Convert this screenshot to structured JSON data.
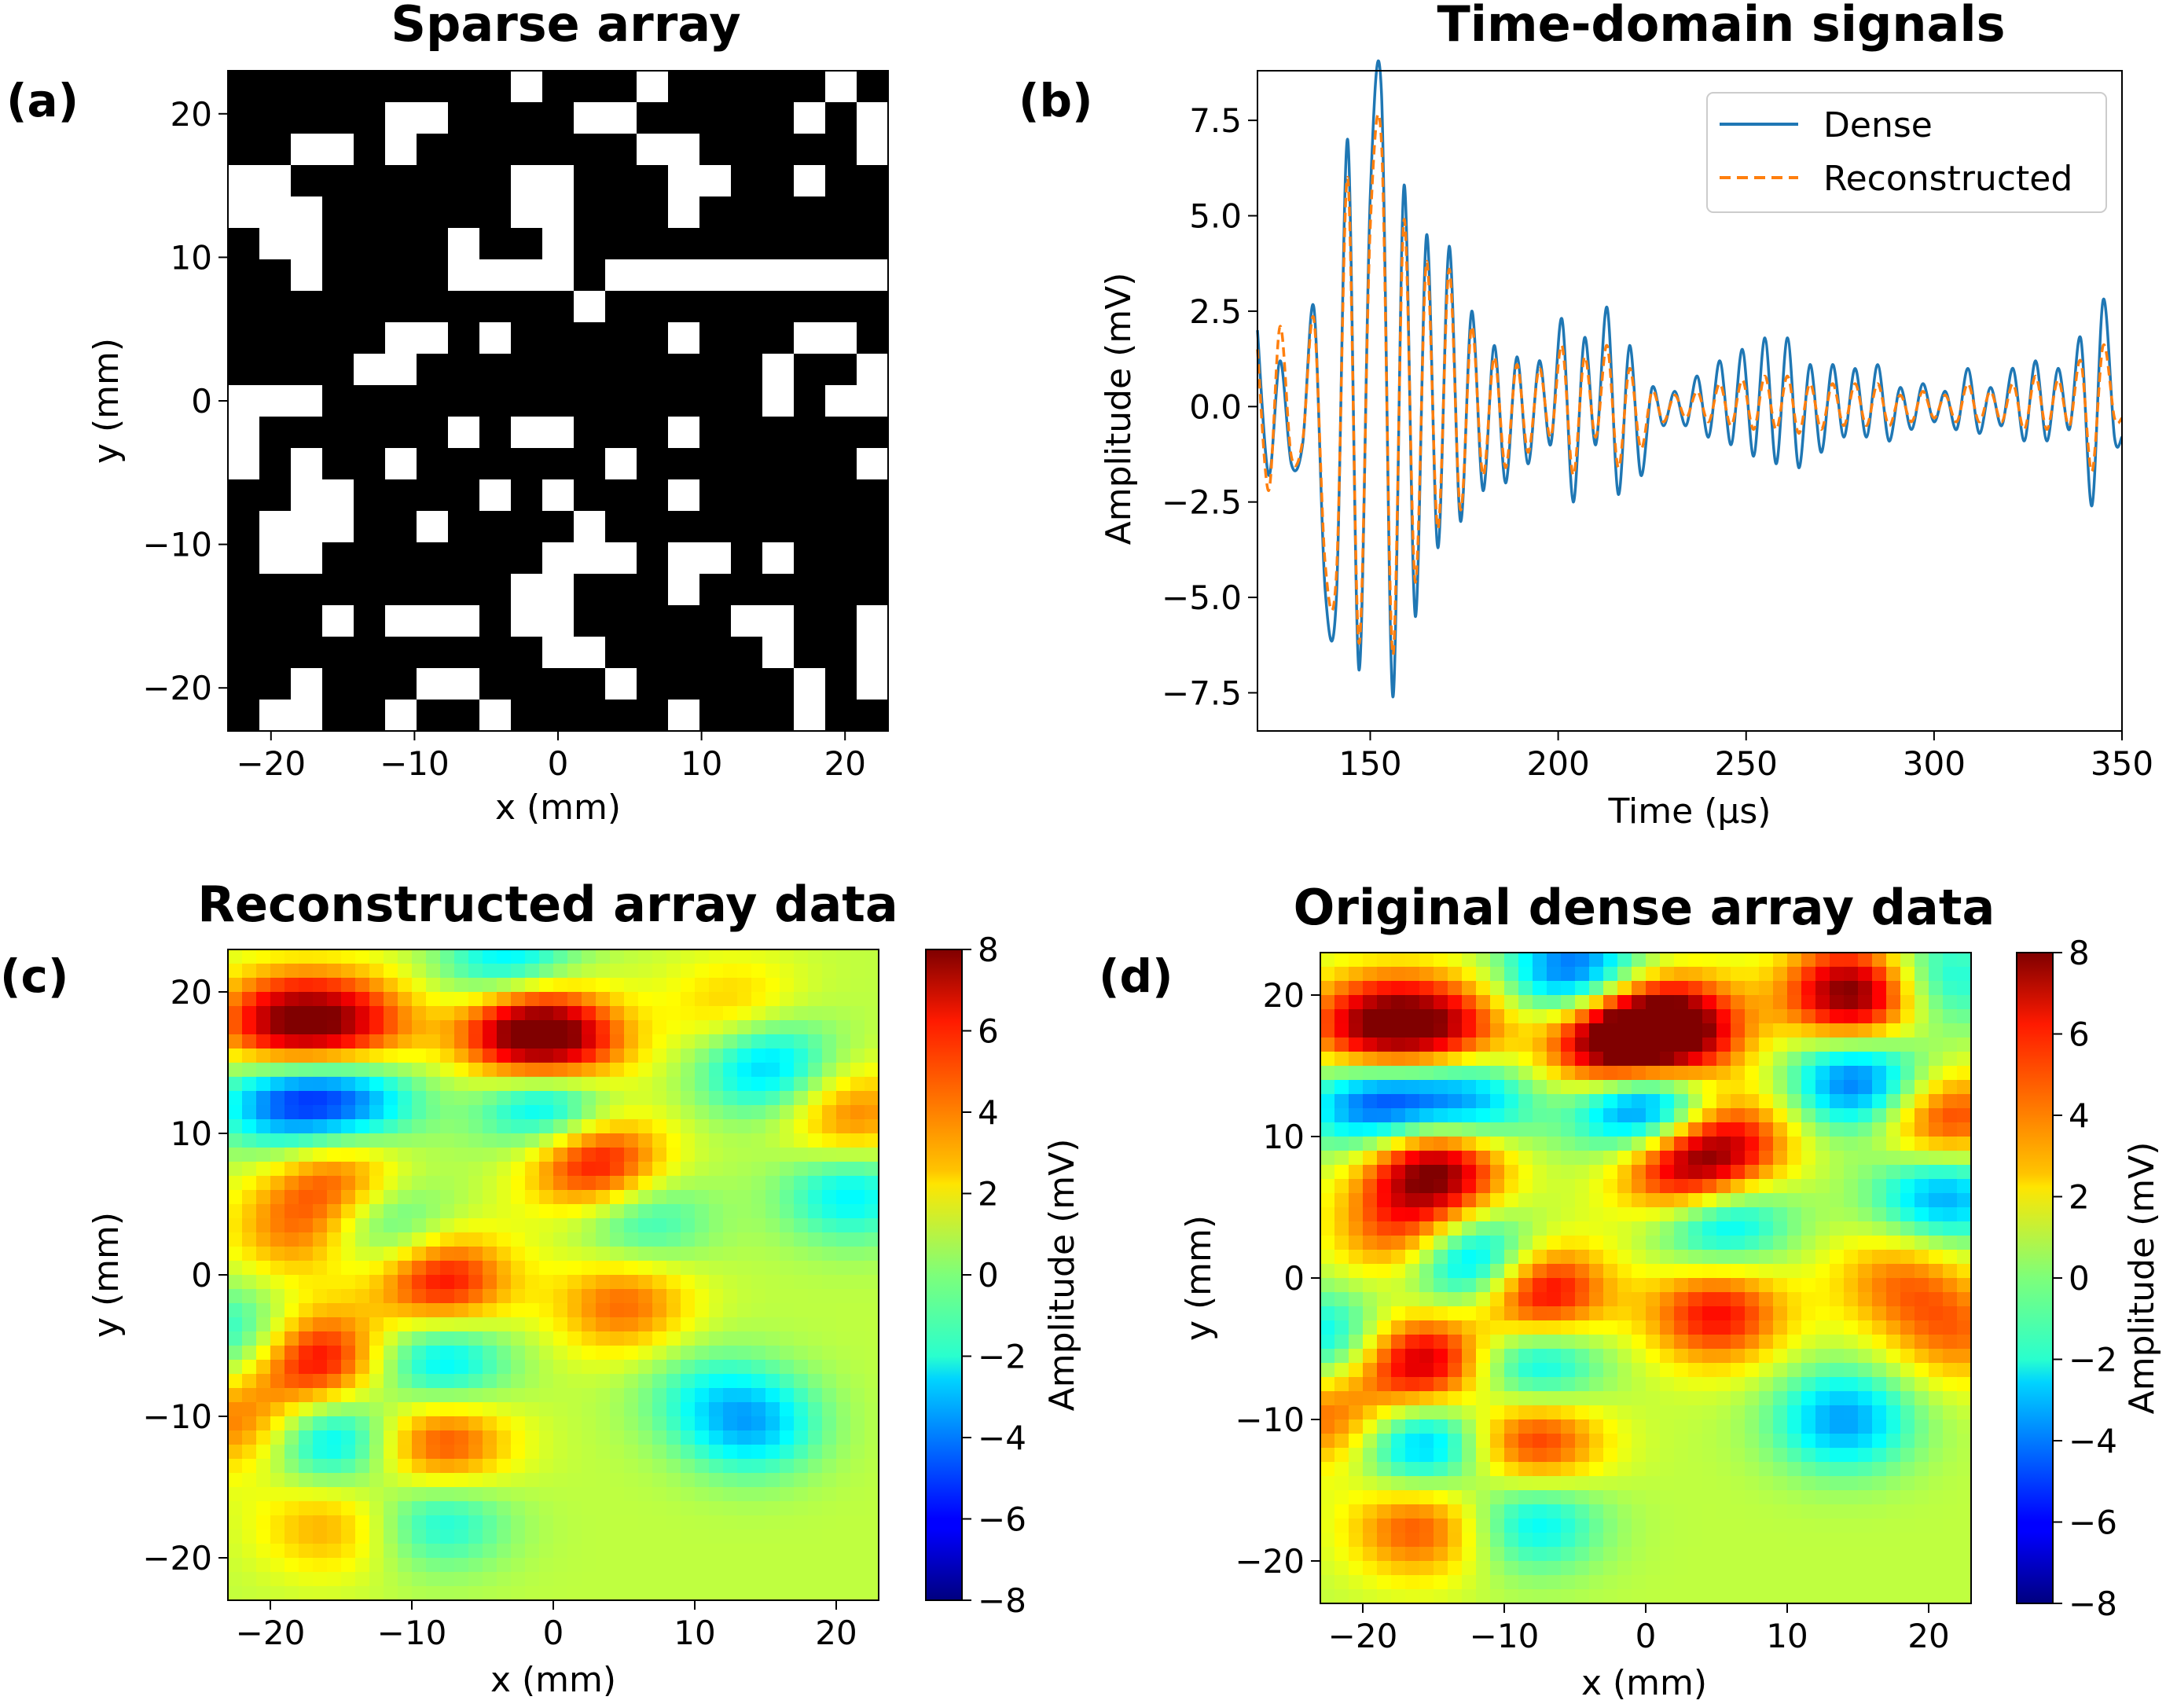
{
  "panels": {
    "a": {
      "label": "(a)",
      "title": "Sparse array",
      "xlabel": "x (mm)",
      "ylabel": "y (mm)",
      "xticks": [
        "−20",
        "−10",
        "0",
        "10",
        "20"
      ],
      "yticks": [
        "20",
        "10",
        "0",
        "−10",
        "−20"
      ]
    },
    "b": {
      "label": "(b)",
      "title": "Time-domain signals",
      "xlabel": "Time (μs)",
      "ylabel": "Amplitude (mV)",
      "xticks": [
        "150",
        "200",
        "250",
        "300",
        "350"
      ],
      "yticks": [
        "7.5",
        "5.0",
        "2.5",
        "0.0",
        "−2.5",
        "−5.0",
        "−7.5"
      ],
      "legend": [
        "Dense",
        "Reconstructed"
      ]
    },
    "c": {
      "label": "(c)",
      "title": "Reconstructed array data",
      "xlabel": "x (mm)",
      "ylabel": "y (mm)",
      "xticks": [
        "−20",
        "−10",
        "0",
        "10",
        "20"
      ],
      "yticks": [
        "20",
        "10",
        "0",
        "−10",
        "−20"
      ],
      "cbar_label": "Amplitude (mV)",
      "cbar_ticks": [
        "8",
        "6",
        "4",
        "2",
        "0",
        "−2",
        "−4",
        "−6",
        "−8"
      ]
    },
    "d": {
      "label": "(d)",
      "title": "Original dense array data",
      "xlabel": "x (mm)",
      "ylabel": "y (mm)",
      "xticks": [
        "−20",
        "−10",
        "0",
        "10",
        "20"
      ],
      "yticks": [
        "20",
        "10",
        "0",
        "−10",
        "−20"
      ],
      "cbar_label": "Amplitude (mV)",
      "cbar_ticks": [
        "8",
        "6",
        "4",
        "2",
        "0",
        "−2",
        "−4",
        "−6",
        "−8"
      ]
    }
  },
  "chart_data": [
    {
      "type": "heatmap",
      "title": "Sparse array",
      "xlabel": "x (mm)",
      "ylabel": "y (mm)",
      "xlim": [
        -23,
        23
      ],
      "ylim": [
        -23,
        23
      ],
      "colormap": "binary (white = active element, black = empty)",
      "grid_size": [
        21,
        21
      ],
      "rows_top_to_bottom": [
        "000000000100010000010",
        "000001100001100000101",
        "001101000000011000001",
        "110000000110001100100",
        "111000000110001000000",
        "011000010010000000000",
        "001000011110111111111",
        "000000000001000000000",
        "000001101000001000110",
        "000011000000000001001",
        "111000000000000001011",
        "100000010110001000000",
        "101001000000100000001",
        "001100001010001000000",
        "011100100001000000000",
        "011000000011101101000",
        "000000000110001000000",
        "000101110110000011001",
        "000000000011000001001",
        "001000110000100000101",
        "011001001000001000100"
      ]
    },
    {
      "type": "line",
      "title": "Time-domain signals",
      "xlabel": "Time (μs)",
      "ylabel": "Amplitude (mV)",
      "xlim": [
        120,
        350
      ],
      "ylim": [
        -8.5,
        8.8
      ],
      "legend_position": "top-right",
      "series": [
        {
          "name": "Dense",
          "color": "#1f77b4",
          "style": "solid",
          "x": [
            120,
            123,
            126,
            129,
            132,
            135,
            138,
            141,
            144,
            147,
            150,
            153,
            156,
            159,
            162,
            165,
            168,
            171,
            174,
            177,
            180,
            183,
            186,
            189,
            192,
            195,
            198,
            201,
            204,
            207,
            210,
            213,
            216,
            219,
            222,
            225,
            228,
            231,
            234,
            237,
            240,
            243,
            246,
            249,
            252,
            255,
            258,
            261,
            264,
            267,
            270,
            273,
            276,
            279,
            282,
            285,
            288,
            291,
            294,
            297,
            300,
            303,
            306,
            309,
            312,
            315,
            318,
            321,
            324,
            327,
            330,
            333,
            336,
            339,
            342,
            345,
            348,
            350
          ],
          "y": [
            2.0,
            -1.8,
            1.2,
            -1.5,
            -1.0,
            2.6,
            -4.8,
            -5.0,
            7.0,
            -6.9,
            5.5,
            8.2,
            -7.6,
            5.8,
            -5.5,
            4.5,
            -3.7,
            4.2,
            -3.0,
            2.5,
            -2.2,
            1.6,
            -2.0,
            1.3,
            -1.5,
            1.2,
            -1.0,
            2.3,
            -2.5,
            1.8,
            -1.0,
            2.6,
            -2.3,
            1.6,
            -1.8,
            0.5,
            -0.5,
            0.4,
            -0.5,
            0.8,
            -0.8,
            1.2,
            -1.0,
            1.5,
            -1.3,
            1.8,
            -1.5,
            1.8,
            -1.6,
            1.1,
            -1.2,
            1.1,
            -0.8,
            1.0,
            -0.8,
            1.1,
            -0.9,
            0.5,
            -0.6,
            0.6,
            -0.4,
            0.4,
            -0.6,
            1.0,
            -0.7,
            0.5,
            -0.5,
            1.0,
            -0.9,
            1.2,
            -0.9,
            1.0,
            -0.6,
            1.8,
            -2.6,
            2.8,
            -0.8,
            -0.8
          ]
        },
        {
          "name": "Reconstructed",
          "color": "#ff7f0e",
          "style": "dashed",
          "x": [
            120,
            123,
            126,
            129,
            132,
            135,
            138,
            141,
            144,
            147,
            150,
            153,
            156,
            159,
            162,
            165,
            168,
            171,
            174,
            177,
            180,
            183,
            186,
            189,
            192,
            195,
            198,
            201,
            204,
            207,
            210,
            213,
            216,
            219,
            222,
            225,
            228,
            231,
            234,
            237,
            240,
            243,
            246,
            249,
            252,
            255,
            258,
            261,
            264,
            267,
            270,
            273,
            276,
            279,
            282,
            285,
            288,
            291,
            294,
            297,
            300,
            303,
            306,
            309,
            312,
            315,
            318,
            321,
            324,
            327,
            330,
            333,
            336,
            339,
            342,
            345,
            348,
            350
          ],
          "y": [
            1.5,
            -2.2,
            2.1,
            -1.3,
            -0.9,
            2.3,
            -4.1,
            -4.4,
            6.0,
            -6.2,
            4.7,
            6.9,
            -6.5,
            4.9,
            -4.6,
            3.8,
            -3.2,
            3.6,
            -2.7,
            2.1,
            -1.8,
            1.3,
            -1.6,
            1.1,
            -1.2,
            1.0,
            -0.8,
            1.6,
            -1.8,
            1.3,
            -0.8,
            1.6,
            -1.6,
            1.0,
            -1.1,
            0.4,
            -0.4,
            0.3,
            -0.3,
            0.4,
            -0.4,
            0.6,
            -0.5,
            0.7,
            -0.6,
            0.8,
            -0.6,
            0.8,
            -0.7,
            0.6,
            -0.6,
            0.6,
            -0.5,
            0.6,
            -0.5,
            0.6,
            -0.5,
            0.3,
            -0.4,
            0.4,
            -0.3,
            0.3,
            -0.4,
            0.6,
            -0.4,
            0.4,
            -0.4,
            0.6,
            -0.6,
            0.8,
            -0.6,
            0.7,
            -0.5,
            1.2,
            -1.7,
            1.6,
            -0.3,
            -0.3
          ]
        }
      ]
    },
    {
      "type": "heatmap",
      "title": "Reconstructed array data",
      "xlabel": "x (mm)",
      "ylabel": "y (mm)",
      "xlim": [
        -23,
        23
      ],
      "ylim": [
        -23,
        23
      ],
      "colormap": "jet",
      "clim": [
        -8,
        8
      ],
      "colorbar_label": "Amplitude (mV)",
      "blobs": [
        {
          "x": -19,
          "y": 17.5,
          "amp": 6.5
        },
        {
          "x": -14,
          "y": 17.5,
          "amp": 4.5
        },
        {
          "x": -19,
          "y": 12.5,
          "amp": -5.5
        },
        {
          "x": -14,
          "y": 12.5,
          "amp": -4.5
        },
        {
          "x": -2,
          "y": 17.5,
          "amp": 7.5
        },
        {
          "x": 1,
          "y": 15.5,
          "amp": 5.0
        },
        {
          "x": 0,
          "y": 12.5,
          "amp": -6.5
        },
        {
          "x": 3,
          "y": 8,
          "amp": 6.0
        },
        {
          "x": -3,
          "y": 21.5,
          "amp": -4.5
        },
        {
          "x": -15,
          "y": 7,
          "amp": 4.0
        },
        {
          "x": -12,
          "y": 3.5,
          "amp": -3.5
        },
        {
          "x": -18,
          "y": 3,
          "amp": 3.0
        },
        {
          "x": -8,
          "y": -0.5,
          "amp": 5.5
        },
        {
          "x": -17,
          "y": -6,
          "amp": 6.0
        },
        {
          "x": -8,
          "y": -6,
          "amp": -4.0
        },
        {
          "x": -16,
          "y": -11.5,
          "amp": -4.5
        },
        {
          "x": -8,
          "y": -12,
          "amp": 4.5
        },
        {
          "x": -22,
          "y": -10.5,
          "amp": 3.5
        },
        {
          "x": -22,
          "y": -4.5,
          "amp": -3.5
        },
        {
          "x": -16,
          "y": -17.5,
          "amp": 2.5
        },
        {
          "x": -8,
          "y": -17,
          "amp": -3.0
        },
        {
          "x": 5,
          "y": -2,
          "amp": 3.5
        },
        {
          "x": 6,
          "y": 4,
          "amp": -3.0
        },
        {
          "x": 15,
          "y": 15,
          "amp": -4.5
        },
        {
          "x": 13,
          "y": 18.5,
          "amp": 2.5
        },
        {
          "x": 21,
          "y": 11,
          "amp": 3.5
        },
        {
          "x": 21,
          "y": 6,
          "amp": -3.5
        },
        {
          "x": 14,
          "y": -10.5,
          "amp": -4.0
        },
        {
          "x": 10,
          "y": -8,
          "amp": -1.5
        }
      ]
    },
    {
      "type": "heatmap",
      "title": "Original dense array data",
      "xlabel": "x (mm)",
      "ylabel": "y (mm)",
      "xlim": [
        -23,
        23
      ],
      "ylim": [
        -23,
        23
      ],
      "colormap": "jet",
      "clim": [
        -8,
        8
      ],
      "colorbar_label": "Amplitude (mV)",
      "blobs": [
        {
          "x": -19,
          "y": 17.5,
          "amp": 7.0
        },
        {
          "x": -14,
          "y": 17.5,
          "amp": 5.0
        },
        {
          "x": -19,
          "y": 12.5,
          "amp": -6.5
        },
        {
          "x": -13,
          "y": 12.5,
          "amp": -5.5
        },
        {
          "x": -2,
          "y": 16.5,
          "amp": 9.0
        },
        {
          "x": 2,
          "y": 17.5,
          "amp": 7.5
        },
        {
          "x": 0,
          "y": 12.5,
          "amp": -8.5
        },
        {
          "x": 3,
          "y": 7.5,
          "amp": 7.5
        },
        {
          "x": 6,
          "y": 10,
          "amp": 4.0
        },
        {
          "x": -5,
          "y": 21.5,
          "amp": -6.0
        },
        {
          "x": 15,
          "y": 20,
          "amp": 8.5
        },
        {
          "x": 15,
          "y": 14,
          "amp": -6.0
        },
        {
          "x": 20,
          "y": 21,
          "amp": -4.0
        },
        {
          "x": -15,
          "y": 8,
          "amp": 8.0
        },
        {
          "x": -17,
          "y": 3,
          "amp": 4.0
        },
        {
          "x": -12,
          "y": 1,
          "amp": -7.0
        },
        {
          "x": -8,
          "y": -1,
          "amp": 7.5
        },
        {
          "x": 5,
          "y": -2.5,
          "amp": 5.0
        },
        {
          "x": 5,
          "y": 4.5,
          "amp": -5.5
        },
        {
          "x": -16,
          "y": -6,
          "amp": 7.0
        },
        {
          "x": -8,
          "y": -6,
          "amp": -4.5
        },
        {
          "x": -16,
          "y": -11.5,
          "amp": -5.5
        },
        {
          "x": -8,
          "y": -11.5,
          "amp": 5.0
        },
        {
          "x": -22,
          "y": -10,
          "amp": 4.0
        },
        {
          "x": -22,
          "y": -4.5,
          "amp": -4.0
        },
        {
          "x": -16,
          "y": -17.5,
          "amp": 4.0
        },
        {
          "x": -8,
          "y": -17,
          "amp": -3.5
        },
        {
          "x": 21,
          "y": 11,
          "amp": 5.0
        },
        {
          "x": 21,
          "y": 6,
          "amp": -5.0
        },
        {
          "x": 14,
          "y": -10,
          "amp": -4.5
        },
        {
          "x": 18,
          "y": 0,
          "amp": 3.0
        },
        {
          "x": 22,
          "y": -4,
          "amp": 3.0
        }
      ]
    }
  ]
}
